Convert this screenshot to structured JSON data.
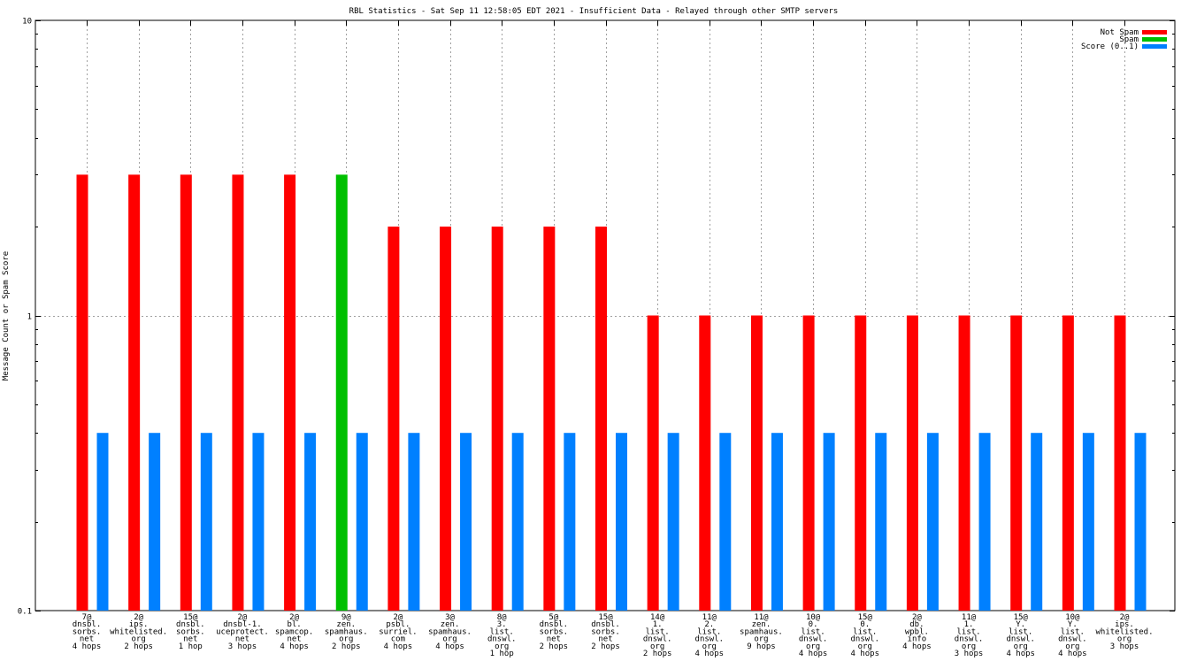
{
  "chart_data": {
    "type": "bar",
    "title": "RBL Statistics - Sat Sep 11 12:58:05 EDT 2021 - Insufficient Data - Relayed through other SMTP servers",
    "xlabel": "",
    "ylabel": "Message Count or Spam Score",
    "yscale": "log",
    "ylim": [
      0.1,
      10
    ],
    "yticks": [
      "0.1",
      "1",
      "10"
    ],
    "grid": true,
    "legend_position": "top-right",
    "categories": [
      [
        "7@",
        "dnsbl.",
        "sorbs.",
        "net",
        "4 hops"
      ],
      [
        "2@",
        "ips.",
        "whitelisted.",
        "org",
        "2 hops"
      ],
      [
        "15@",
        "dnsbl.",
        "sorbs.",
        "net",
        "1 hop"
      ],
      [
        "2@",
        "dnsbl-1.",
        "uceprotect.",
        "net",
        "3 hops"
      ],
      [
        "2@",
        "bl.",
        "spamcop.",
        "net",
        "4 hops"
      ],
      [
        "9@",
        "zen.",
        "spamhaus.",
        "org",
        "2 hops"
      ],
      [
        "2@",
        "psbl.",
        "surriel.",
        "com",
        "4 hops"
      ],
      [
        "3@",
        "zen.",
        "spamhaus.",
        "org",
        "4 hops"
      ],
      [
        "8@",
        "3.",
        "list.",
        "dnswl.",
        "org",
        "1 hop"
      ],
      [
        "5@",
        "dnsbl.",
        "sorbs.",
        "net",
        "2 hops"
      ],
      [
        "15@",
        "dnsbl.",
        "sorbs.",
        "net",
        "2 hops"
      ],
      [
        "14@",
        "1.",
        "list.",
        "dnswl.",
        "org",
        "2 hops"
      ],
      [
        "11@",
        "2.",
        "list.",
        "dnswl.",
        "org",
        "4 hops"
      ],
      [
        "11@",
        "zen.",
        "spamhaus.",
        "org",
        "9 hops"
      ],
      [
        "10@",
        "0.",
        "list.",
        "dnswl.",
        "org",
        "4 hops"
      ],
      [
        "15@",
        "0.",
        "list.",
        "dnswl.",
        "org",
        "4 hops"
      ],
      [
        "2@",
        "db.",
        "wpbl.",
        "info",
        "4 hops"
      ],
      [
        "11@",
        "1.",
        "list.",
        "dnswl.",
        "org",
        "3 hops"
      ],
      [
        "15@",
        "Y.",
        "list.",
        "dnswl.",
        "org",
        "4 hops"
      ],
      [
        "10@",
        "Y.",
        "list.",
        "dnswl.",
        "org",
        "4 hops"
      ],
      [
        "2@",
        "ips.",
        "whitelisted.",
        "org",
        "3 hops"
      ]
    ],
    "series": [
      {
        "name": "Not Spam",
        "color": "#ff0000",
        "values": [
          3,
          3,
          3,
          3,
          3,
          null,
          2,
          2,
          2,
          2,
          2,
          1,
          1,
          1,
          1,
          1,
          1,
          1,
          1,
          1,
          1
        ]
      },
      {
        "name": "Spam",
        "color": "#00c000",
        "values": [
          null,
          null,
          null,
          null,
          null,
          3,
          null,
          null,
          null,
          null,
          null,
          null,
          null,
          null,
          null,
          null,
          null,
          null,
          null,
          null,
          null
        ]
      },
      {
        "name": "Score (0..1)",
        "color": "#0080ff",
        "values": [
          0.4,
          0.4,
          0.4,
          0.4,
          0.4,
          0.4,
          0.4,
          0.4,
          0.4,
          0.4,
          0.4,
          0.4,
          0.4,
          0.4,
          0.4,
          0.4,
          0.4,
          0.4,
          0.4,
          0.4,
          0.4
        ]
      }
    ]
  }
}
